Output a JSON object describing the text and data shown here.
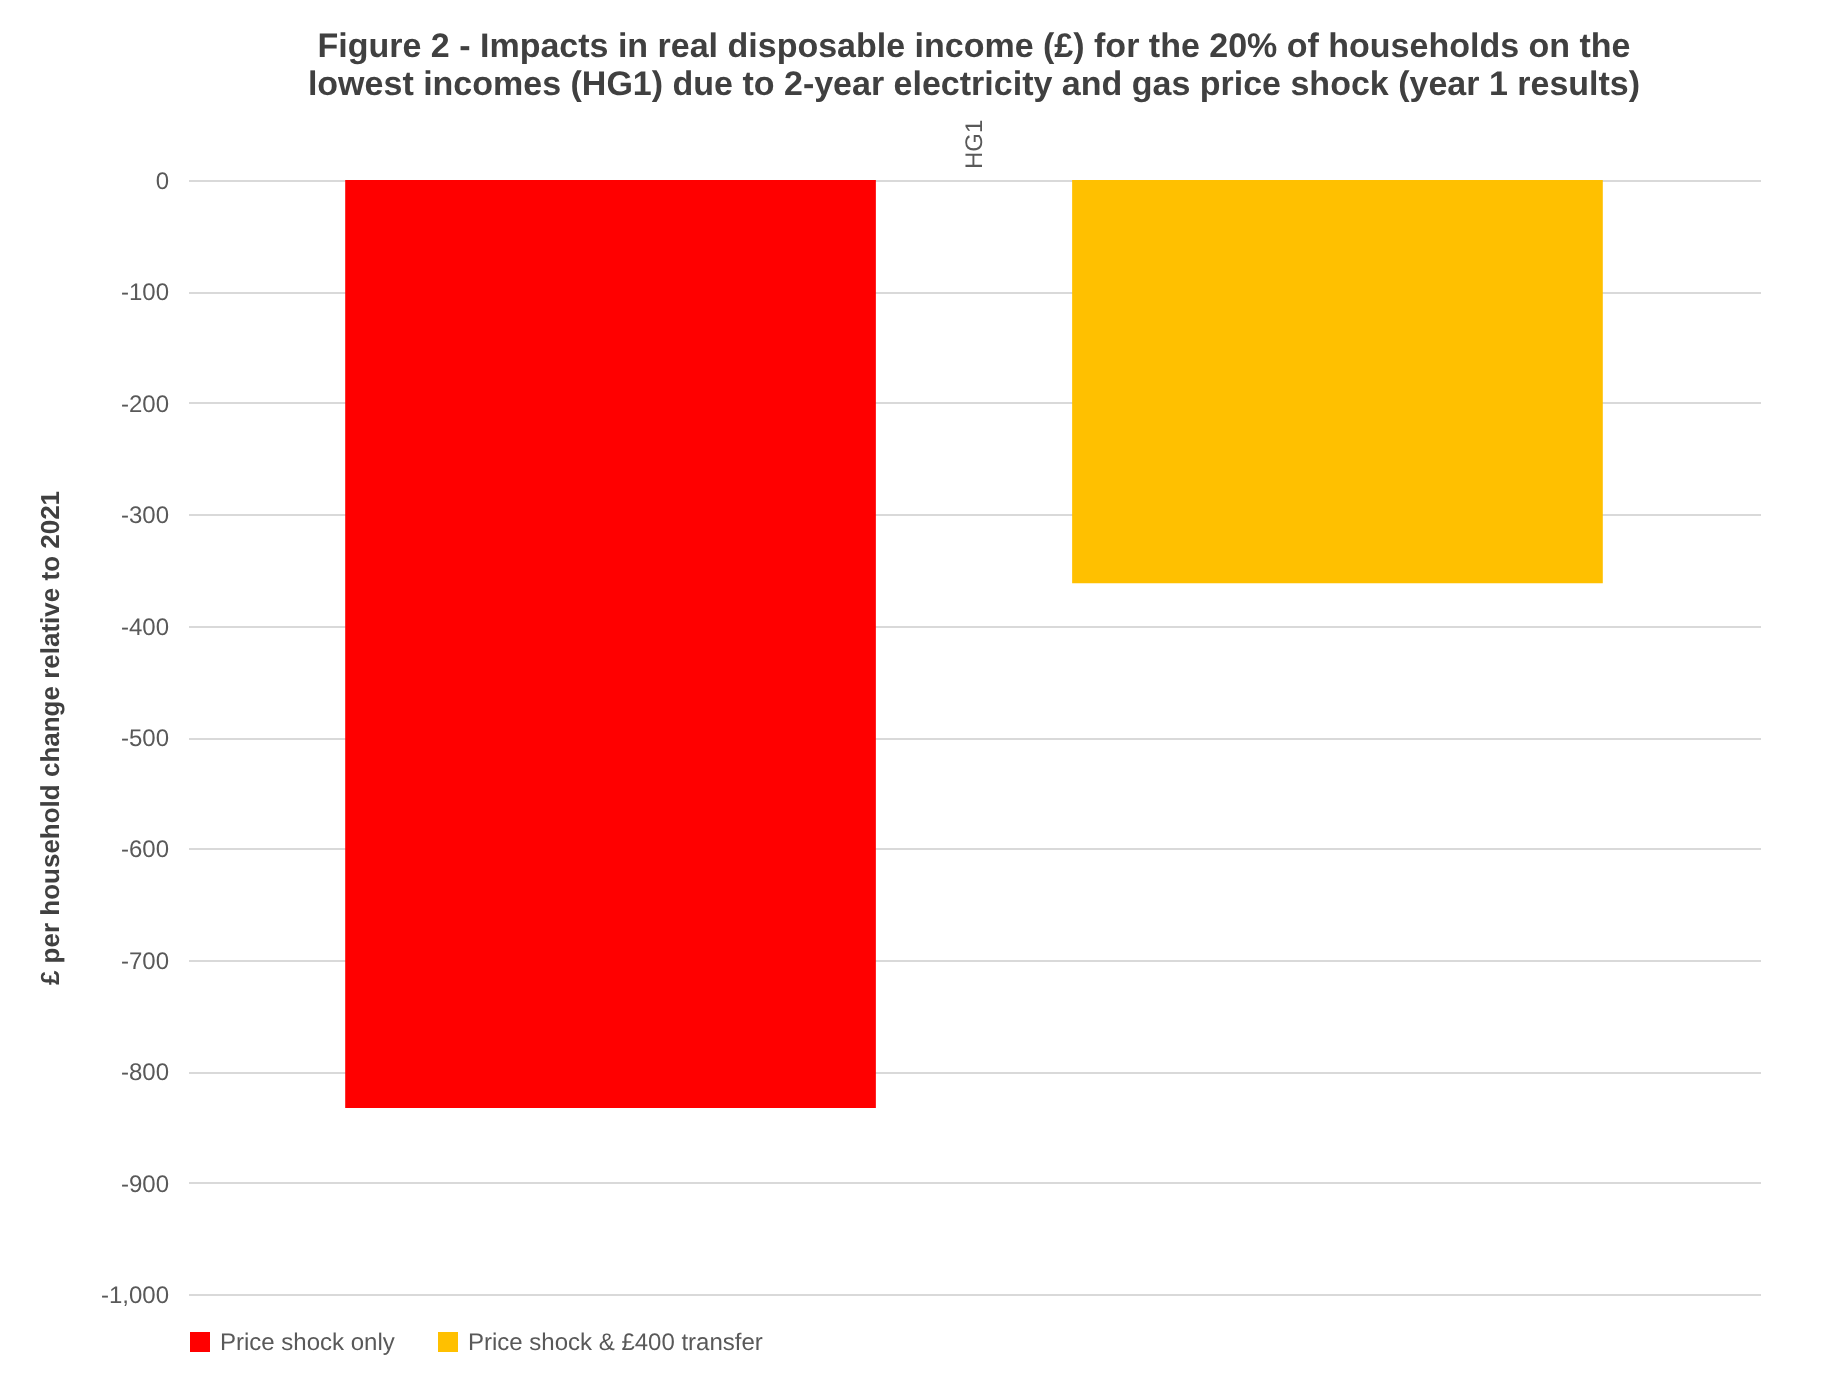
{
  "chart_data": {
    "type": "bar",
    "title": "Figure 2 - Impacts in real disposable income (£) for the 20% of households on the lowest incomes (HG1) due to 2-year electricity and gas price shock (year 1 results)",
    "ylabel": "£ per household change relative to 2021",
    "categories": [
      "HG1"
    ],
    "series": [
      {
        "name": "Price shock only",
        "color": "#ff0000",
        "values": [
          -833
        ]
      },
      {
        "name": "Price shock & £400 transfer",
        "color": "#ffc000",
        "values": [
          -362
        ]
      }
    ],
    "ylim": [
      -1000,
      0
    ],
    "yticks": [
      {
        "value": -1000,
        "label": "-1,000"
      },
      -900,
      -800,
      -700,
      -600,
      -500,
      -400,
      -300,
      -200,
      -100,
      0
    ],
    "grid": "y",
    "legend": "bottom"
  }
}
